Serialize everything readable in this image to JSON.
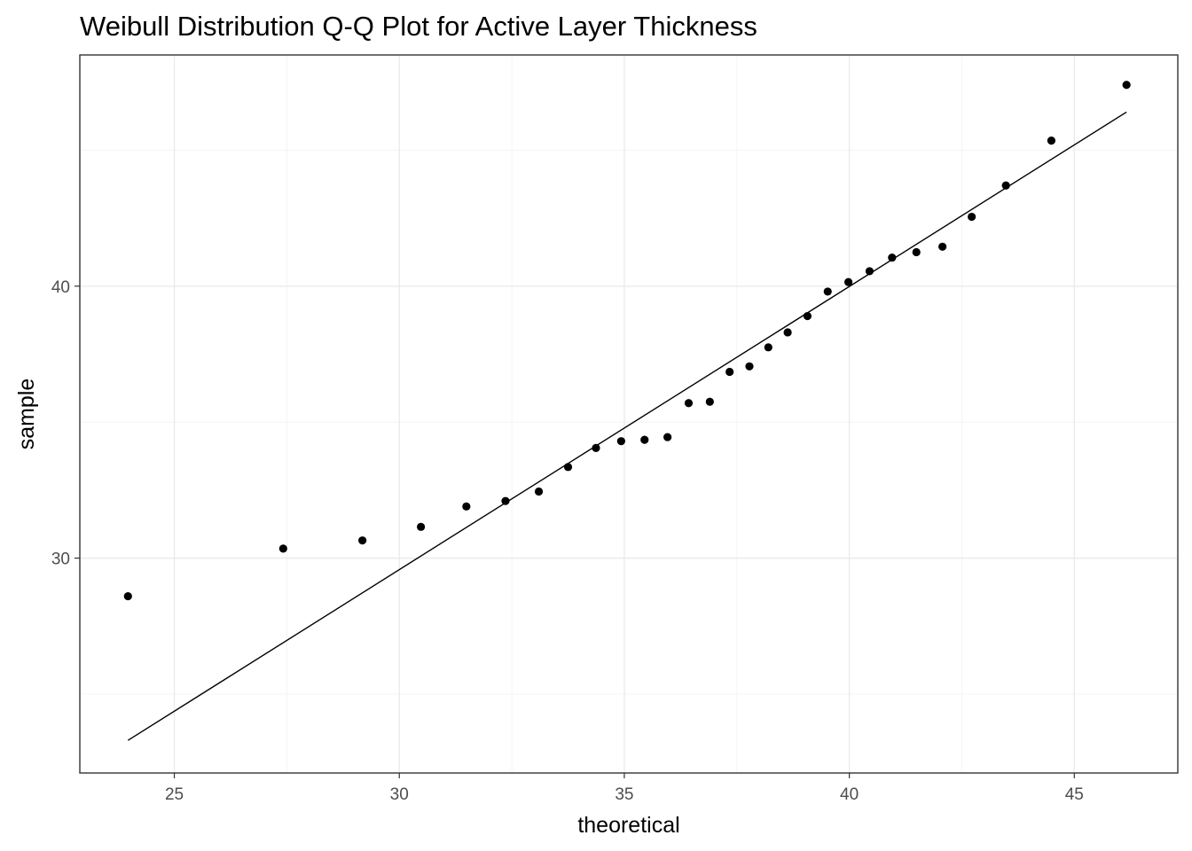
{
  "chart_data": {
    "type": "scatter",
    "title": "Weibull Distribution Q-Q Plot for Active Layer Thickness",
    "xlabel": "theoretical",
    "ylabel": "sample",
    "xlim": [
      22.9,
      47.3
    ],
    "ylim": [
      22.1,
      48.5
    ],
    "xticks": [
      25,
      30,
      35,
      40,
      45
    ],
    "yticks": [
      30,
      40
    ],
    "grid": true,
    "legend": "none",
    "points": [
      {
        "x": 23.97,
        "y": 28.6
      },
      {
        "x": 27.42,
        "y": 30.35
      },
      {
        "x": 29.18,
        "y": 30.65
      },
      {
        "x": 30.48,
        "y": 31.15
      },
      {
        "x": 31.49,
        "y": 31.9
      },
      {
        "x": 32.36,
        "y": 32.1
      },
      {
        "x": 33.1,
        "y": 32.45
      },
      {
        "x": 33.75,
        "y": 33.35
      },
      {
        "x": 34.37,
        "y": 34.05
      },
      {
        "x": 34.93,
        "y": 34.3
      },
      {
        "x": 35.45,
        "y": 34.35
      },
      {
        "x": 35.96,
        "y": 34.45
      },
      {
        "x": 36.43,
        "y": 35.7
      },
      {
        "x": 36.9,
        "y": 35.75
      },
      {
        "x": 37.34,
        "y": 36.85
      },
      {
        "x": 37.78,
        "y": 37.05
      },
      {
        "x": 38.2,
        "y": 37.75
      },
      {
        "x": 38.63,
        "y": 38.3
      },
      {
        "x": 39.07,
        "y": 38.9
      },
      {
        "x": 39.52,
        "y": 39.8
      },
      {
        "x": 39.98,
        "y": 40.15
      },
      {
        "x": 40.45,
        "y": 40.55
      },
      {
        "x": 40.95,
        "y": 41.05
      },
      {
        "x": 41.49,
        "y": 41.25
      },
      {
        "x": 42.07,
        "y": 41.45
      },
      {
        "x": 42.72,
        "y": 42.55
      },
      {
        "x": 43.48,
        "y": 43.7
      },
      {
        "x": 44.49,
        "y": 45.35
      },
      {
        "x": 46.16,
        "y": 47.4
      }
    ],
    "reference_line": {
      "x": [
        23.97,
        46.16
      ],
      "y": [
        23.3,
        46.4
      ]
    }
  }
}
